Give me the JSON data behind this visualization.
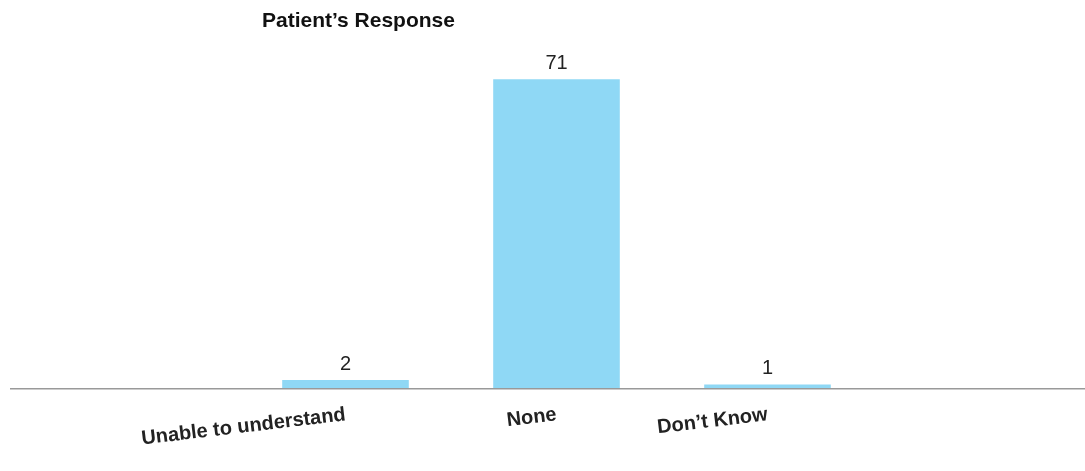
{
  "chart_data": {
    "type": "bar",
    "title": "Patient’s Response",
    "categories": [
      "Unable to understand",
      "None",
      "Don’t Know"
    ],
    "values": [
      2,
      71,
      1
    ],
    "color": "#8fd8f5",
    "data_labels": true,
    "grid": false,
    "legend": false
  }
}
